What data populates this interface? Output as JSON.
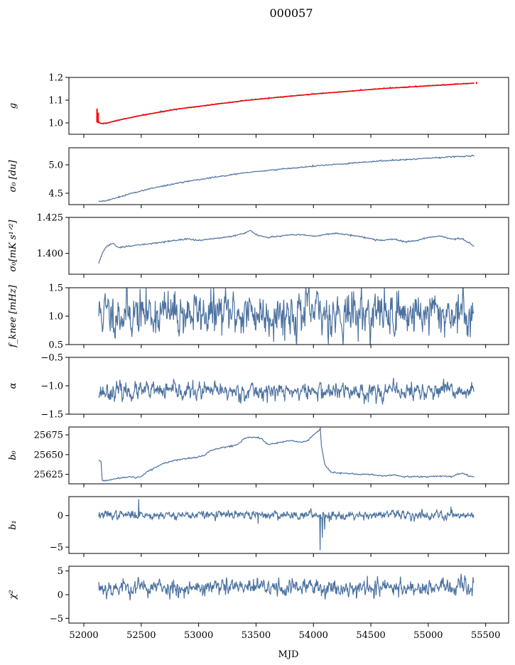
{
  "title": "000057",
  "xlabel": "MJD",
  "colors": {
    "series": "#4c72a0",
    "fit": "#ff0000"
  },
  "chart_data": [
    {
      "type": "line",
      "ylabel": "g",
      "ylabel_tex": "g",
      "ylim": [
        0.95,
        1.2
      ],
      "yticks": [
        1.0,
        1.1,
        1.2
      ],
      "ytick_labels": [
        "1.0",
        "1.1",
        "1.2"
      ],
      "series": [
        {
          "x": [
            52110,
            52130,
            52140,
            52150,
            52170,
            52200,
            52250,
            52300,
            52400,
            52500,
            52600,
            52700,
            52800,
            52900,
            53000,
            53100,
            53200,
            53300,
            53400,
            53500,
            53600,
            53700,
            53800,
            53900,
            54000,
            54100,
            54200,
            54300,
            54400,
            54500,
            54600,
            54700,
            54800,
            54900,
            55000,
            55100,
            55200,
            55300,
            55400
          ],
          "y": [
            1.01,
            1.003,
            1.0,
            0.998,
            0.997,
            0.999,
            1.005,
            1.012,
            1.023,
            1.033,
            1.042,
            1.051,
            1.06,
            1.067,
            1.073,
            1.079,
            1.086,
            1.092,
            1.098,
            1.104,
            1.109,
            1.113,
            1.118,
            1.122,
            1.127,
            1.131,
            1.135,
            1.139,
            1.143,
            1.147,
            1.151,
            1.154,
            1.157,
            1.16,
            1.163,
            1.166,
            1.169,
            1.172,
            1.175
          ]
        }
      ],
      "fit": {
        "x": [
          52110,
          52150,
          52200,
          52300,
          52500,
          52800,
          53100,
          53400,
          53700,
          54000,
          54300,
          54600,
          54900,
          55200,
          55400
        ],
        "y": [
          1.005,
          0.998,
          0.999,
          1.012,
          1.033,
          1.06,
          1.079,
          1.098,
          1.113,
          1.127,
          1.139,
          1.151,
          1.16,
          1.169,
          1.175
        ]
      },
      "spikes": [
        {
          "x": 52115,
          "y0": 1.005,
          "y1": 1.063
        },
        {
          "x": 52125,
          "y0": 1.0,
          "y1": 1.045
        },
        {
          "x": 55420,
          "y0": 1.172,
          "y1": 1.18
        }
      ]
    },
    {
      "type": "line",
      "ylabel": "σ0 [du]",
      "ylabel_tex": "σ₀ [du]",
      "ylim": [
        4.3,
        5.3
      ],
      "yticks": [
        4.5,
        5.0
      ],
      "ytick_labels": [
        "4.5",
        "5.0"
      ],
      "series": [
        {
          "x": [
            52130,
            52160,
            52200,
            52300,
            52400,
            52500,
            52600,
            52700,
            52800,
            52900,
            53000,
            53200,
            53400,
            53600,
            53800,
            54000,
            54200,
            54400,
            54600,
            54800,
            55000,
            55200,
            55400
          ],
          "y": [
            4.36,
            4.36,
            4.37,
            4.43,
            4.49,
            4.54,
            4.59,
            4.63,
            4.67,
            4.71,
            4.74,
            4.8,
            4.86,
            4.9,
            4.94,
            4.98,
            5.01,
            5.04,
            5.07,
            5.09,
            5.12,
            5.14,
            5.16
          ]
        }
      ]
    },
    {
      "type": "line",
      "ylabel": "σ0[mK s^1/2]",
      "ylabel_tex": "σ₀[mK s¹ᐟ²]",
      "ylim": [
        1.3855,
        1.425
      ],
      "yticks": [
        1.4,
        1.425
      ],
      "ytick_labels": [
        "1.400",
        "1.425"
      ],
      "series": [
        {
          "x": [
            52130,
            52160,
            52200,
            52250,
            52300,
            52400,
            52500,
            52600,
            52700,
            52800,
            52900,
            53000,
            53100,
            53200,
            53300,
            53400,
            53450,
            53500,
            53600,
            53700,
            53800,
            53900,
            54000,
            54100,
            54200,
            54300,
            54400,
            54500,
            54600,
            54700,
            54800,
            54900,
            55000,
            55100,
            55200,
            55300,
            55400
          ],
          "y": [
            1.393,
            1.4,
            1.405,
            1.407,
            1.404,
            1.405,
            1.406,
            1.407,
            1.408,
            1.409,
            1.41,
            1.409,
            1.41,
            1.411,
            1.412,
            1.414,
            1.416,
            1.413,
            1.411,
            1.412,
            1.413,
            1.413,
            1.412,
            1.413,
            1.414,
            1.413,
            1.412,
            1.41,
            1.409,
            1.41,
            1.408,
            1.409,
            1.411,
            1.412,
            1.41,
            1.41,
            1.405
          ]
        }
      ]
    },
    {
      "type": "line",
      "ylabel": "fknee [mHz]",
      "ylabel_tex": "f_knee [mHz]",
      "ylim": [
        0.5,
        1.5
      ],
      "yticks": [
        0.5,
        1.0,
        1.5
      ],
      "ytick_labels": [
        "0.5",
        "1.0",
        "1.5"
      ],
      "series": [
        {
          "x_start": 52130,
          "x_end": 55400,
          "mean": 1.05,
          "noise": 0.18,
          "seed": 11
        }
      ]
    },
    {
      "type": "line",
      "ylabel": "α",
      "ylabel_tex": "α",
      "ylim": [
        -1.5,
        -0.5
      ],
      "yticks": [
        -1.5,
        -1.0,
        -0.5
      ],
      "ytick_labels": [
        "−1.5",
        "−1.0",
        "−0.5"
      ],
      "series": [
        {
          "x_start": 52130,
          "x_end": 55400,
          "mean": -1.1,
          "noise": 0.07,
          "seed": 23
        }
      ]
    },
    {
      "type": "line",
      "ylabel": "b0",
      "ylabel_tex": "b₀",
      "ylim": [
        25613,
        25685
      ],
      "yticks": [
        25625,
        25650,
        25675
      ],
      "ytick_labels": [
        "25625",
        "25650",
        "25675"
      ],
      "series": [
        {
          "x": [
            52130,
            52150,
            52160,
            52200,
            52300,
            52400,
            52450,
            52500,
            52550,
            52600,
            52700,
            52800,
            52900,
            53000,
            53050,
            53100,
            53200,
            53300,
            53350,
            53400,
            53500,
            53550,
            53600,
            53700,
            53800,
            53900,
            53950,
            54000,
            54050,
            54060,
            54070,
            54100,
            54150,
            54200,
            54300,
            54400,
            54500,
            54600,
            54700,
            54800,
            54900,
            55000,
            55100,
            55200,
            55250,
            55300,
            55350,
            55400
          ],
          "y": [
            25643,
            25642,
            25617,
            25617,
            25620,
            25622,
            25621,
            25622,
            25628,
            25632,
            25639,
            25643,
            25645,
            25647,
            25649,
            25655,
            25659,
            25661,
            25664,
            25671,
            25672,
            25670,
            25663,
            25665,
            25668,
            25666,
            25668,
            25675,
            25681,
            25683,
            25660,
            25637,
            25628,
            25627,
            25626,
            25625,
            25625,
            25623,
            25624,
            25622,
            25622,
            25622,
            25623,
            25622,
            25625,
            25627,
            25623,
            25622
          ]
        }
      ]
    },
    {
      "type": "line",
      "ylabel": "b1",
      "ylabel_tex": "b₁",
      "ylim": [
        -6,
        3
      ],
      "yticks": [
        -5,
        0
      ],
      "ytick_labels": [
        "−5",
        "0"
      ],
      "series": [
        {
          "x_start": 52130,
          "x_end": 55400,
          "mean": 0.1,
          "noise": 0.3,
          "seed": 37,
          "events": [
            {
              "x": 52480,
              "y": 2.6
            },
            {
              "x": 53520,
              "y": -1.3
            },
            {
              "x": 54060,
              "y": -5.5
            },
            {
              "x": 54080,
              "y": -3.5
            },
            {
              "x": 54100,
              "y": -2.2
            },
            {
              "x": 54140,
              "y": -1.0
            },
            {
              "x": 55200,
              "y": 1.4
            }
          ]
        }
      ]
    },
    {
      "type": "line",
      "ylabel": "χ2",
      "ylabel_tex": "χ²",
      "ylim": [
        -6,
        6
      ],
      "yticks": [
        -5,
        0,
        5
      ],
      "ytick_labels": [
        "−5",
        "0",
        "5"
      ],
      "series": [
        {
          "x_start": 52130,
          "x_end": 55400,
          "mean": 1.5,
          "noise": 0.85,
          "seed": 53
        }
      ]
    }
  ],
  "xaxis": {
    "xlim": [
      51870,
      55700
    ],
    "xticks": [
      52000,
      52500,
      53000,
      53500,
      54000,
      54500,
      55000,
      55500
    ],
    "xtick_labels": [
      "52000",
      "52500",
      "53000",
      "53500",
      "54000",
      "54500",
      "55000",
      "55500"
    ]
  }
}
